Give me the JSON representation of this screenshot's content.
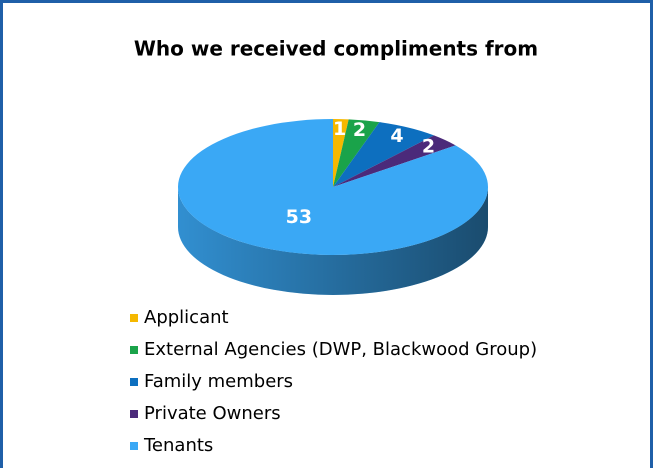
{
  "chart_data": {
    "type": "pie",
    "title": "Who we received compliments from",
    "categories": [
      "Applicant",
      "External Agencies (DWP, Blackwood Group)",
      "Family members",
      "Private Owners",
      "Tenants"
    ],
    "values": [
      1,
      2,
      4,
      2,
      53
    ],
    "colors": [
      "#f5b800",
      "#1aa34a",
      "#0d6fbf",
      "#4b2a7a",
      "#3aa8f5"
    ],
    "legend": "bottom"
  }
}
